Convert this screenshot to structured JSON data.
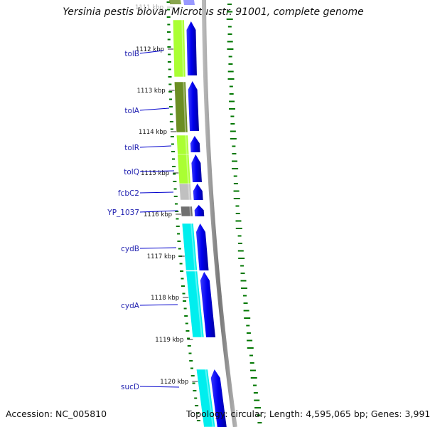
{
  "header": {
    "title": "Yersinia pestis biovar Microtus str. 91001, complete genome"
  },
  "footer": {
    "accession": "Accession: NC_005810",
    "topology": "Topology: circular; Length: 4,595,065 bp; Genes: 3,991"
  },
  "colors": {
    "forward_arrow": "#0000ee",
    "backbone": "#8a8a8a",
    "label_line": "#0000cc",
    "gc_ticks": "#007700"
  },
  "ticks": [
    {
      "label": "1111 kbp",
      "faded": true
    },
    {
      "label": "1112 kbp"
    },
    {
      "label": "1113 kbp"
    },
    {
      "label": "1114 kbp"
    },
    {
      "label": "1115 kbp"
    },
    {
      "label": "1116 kbp"
    },
    {
      "label": "1117 kbp"
    },
    {
      "label": "1118 kbp"
    },
    {
      "label": "1119 kbp"
    },
    {
      "label": "1120 kbp"
    }
  ],
  "genes": [
    {
      "name": "tolB",
      "color": "#aaff33"
    },
    {
      "name": "tolA",
      "color": "#6b8e23"
    },
    {
      "name": "tolR",
      "color": "#aaff33"
    },
    {
      "name": "tolQ",
      "color": "#aaff33"
    },
    {
      "name": "fcbC2",
      "color": "#c0c0c0"
    },
    {
      "name": "YP_1037",
      "color": "#707070"
    },
    {
      "name": "cydB",
      "color": "#00eeee"
    },
    {
      "name": "cydA",
      "color": "#00eeee"
    },
    {
      "name": "sucD",
      "color": "#00eeee"
    }
  ]
}
